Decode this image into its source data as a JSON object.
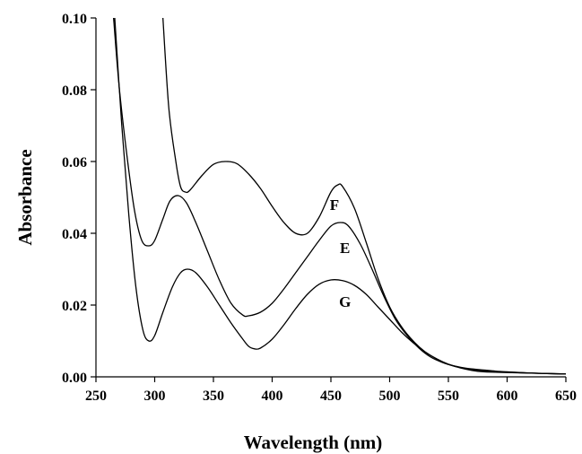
{
  "chart_data": {
    "type": "line",
    "xlabel": "Wavelength (nm)",
    "ylabel": "Absorbance",
    "xlim": [
      250,
      650
    ],
    "ylim": [
      0,
      0.1
    ],
    "x_ticks": [
      "250",
      "300",
      "350",
      "400",
      "450",
      "500",
      "550",
      "600",
      "650"
    ],
    "y_ticks": [
      "0.00",
      "0.02",
      "0.04",
      "0.06",
      "0.08",
      "0.10"
    ],
    "grid": false,
    "series": [
      {
        "name": "F",
        "points": [
          [
            307,
            0.1
          ],
          [
            312,
            0.075
          ],
          [
            318,
            0.06
          ],
          [
            322,
            0.053
          ],
          [
            326,
            0.0515
          ],
          [
            330,
            0.052
          ],
          [
            340,
            0.056
          ],
          [
            350,
            0.0592
          ],
          [
            360,
            0.06
          ],
          [
            370,
            0.0594
          ],
          [
            380,
            0.0565
          ],
          [
            390,
            0.0525
          ],
          [
            400,
            0.0475
          ],
          [
            410,
            0.043
          ],
          [
            420,
            0.04
          ],
          [
            430,
            0.04
          ],
          [
            440,
            0.0445
          ],
          [
            450,
            0.0515
          ],
          [
            456,
            0.0535
          ],
          [
            460,
            0.053
          ],
          [
            470,
            0.047
          ],
          [
            480,
            0.0375
          ],
          [
            490,
            0.0275
          ],
          [
            500,
            0.0195
          ],
          [
            510,
            0.014
          ],
          [
            520,
            0.01
          ],
          [
            530,
            0.007
          ],
          [
            540,
            0.005
          ],
          [
            550,
            0.0035
          ],
          [
            560,
            0.0025
          ],
          [
            570,
            0.0018
          ],
          [
            580,
            0.0014
          ],
          [
            590,
            0.0013
          ],
          [
            600,
            0.0012
          ],
          [
            625,
            0.001
          ],
          [
            650,
            0.0008
          ]
        ]
      },
      {
        "name": "E",
        "points": [
          [
            265,
            0.1
          ],
          [
            270,
            0.08
          ],
          [
            277,
            0.06
          ],
          [
            283,
            0.046
          ],
          [
            289,
            0.038
          ],
          [
            295,
            0.0365
          ],
          [
            300,
            0.038
          ],
          [
            307,
            0.044
          ],
          [
            313,
            0.049
          ],
          [
            320,
            0.0505
          ],
          [
            327,
            0.0485
          ],
          [
            335,
            0.043
          ],
          [
            345,
            0.035
          ],
          [
            355,
            0.027
          ],
          [
            365,
            0.0205
          ],
          [
            375,
            0.0172
          ],
          [
            380,
            0.017
          ],
          [
            390,
            0.018
          ],
          [
            400,
            0.0205
          ],
          [
            410,
            0.0245
          ],
          [
            420,
            0.029
          ],
          [
            430,
            0.0335
          ],
          [
            440,
            0.038
          ],
          [
            450,
            0.042
          ],
          [
            458,
            0.043
          ],
          [
            465,
            0.042
          ],
          [
            475,
            0.037
          ],
          [
            485,
            0.03
          ],
          [
            495,
            0.0225
          ],
          [
            505,
            0.016
          ],
          [
            515,
            0.0115
          ],
          [
            525,
            0.008
          ],
          [
            535,
            0.0055
          ],
          [
            545,
            0.004
          ],
          [
            555,
            0.003
          ],
          [
            565,
            0.0023
          ],
          [
            580,
            0.0017
          ],
          [
            600,
            0.0013
          ],
          [
            625,
            0.001
          ],
          [
            650,
            0.0008
          ]
        ]
      },
      {
        "name": "G",
        "points": [
          [
            266,
            0.1
          ],
          [
            272,
            0.07
          ],
          [
            278,
            0.045
          ],
          [
            284,
            0.025
          ],
          [
            290,
            0.013
          ],
          [
            295,
            0.01
          ],
          [
            300,
            0.0115
          ],
          [
            307,
            0.018
          ],
          [
            315,
            0.025
          ],
          [
            322,
            0.029
          ],
          [
            328,
            0.03
          ],
          [
            335,
            0.029
          ],
          [
            345,
            0.025
          ],
          [
            355,
            0.02
          ],
          [
            365,
            0.015
          ],
          [
            375,
            0.0105
          ],
          [
            380,
            0.0085
          ],
          [
            385,
            0.0078
          ],
          [
            390,
            0.008
          ],
          [
            400,
            0.0105
          ],
          [
            410,
            0.0145
          ],
          [
            420,
            0.019
          ],
          [
            430,
            0.023
          ],
          [
            440,
            0.0258
          ],
          [
            450,
            0.027
          ],
          [
            460,
            0.0268
          ],
          [
            470,
            0.0255
          ],
          [
            480,
            0.023
          ],
          [
            490,
            0.0195
          ],
          [
            500,
            0.016
          ],
          [
            510,
            0.0125
          ],
          [
            520,
            0.0095
          ],
          [
            530,
            0.007
          ],
          [
            540,
            0.005
          ],
          [
            550,
            0.0035
          ],
          [
            560,
            0.0027
          ],
          [
            570,
            0.0022
          ],
          [
            580,
            0.0019
          ],
          [
            590,
            0.0016
          ],
          [
            600,
            0.0014
          ],
          [
            625,
            0.001
          ],
          [
            650,
            0.0008
          ]
        ]
      }
    ],
    "annotations": [
      {
        "text": "F",
        "x": 453,
        "y": 0.048
      },
      {
        "text": "E",
        "x": 462,
        "y": 0.036
      },
      {
        "text": "G",
        "x": 462,
        "y": 0.021
      }
    ]
  }
}
